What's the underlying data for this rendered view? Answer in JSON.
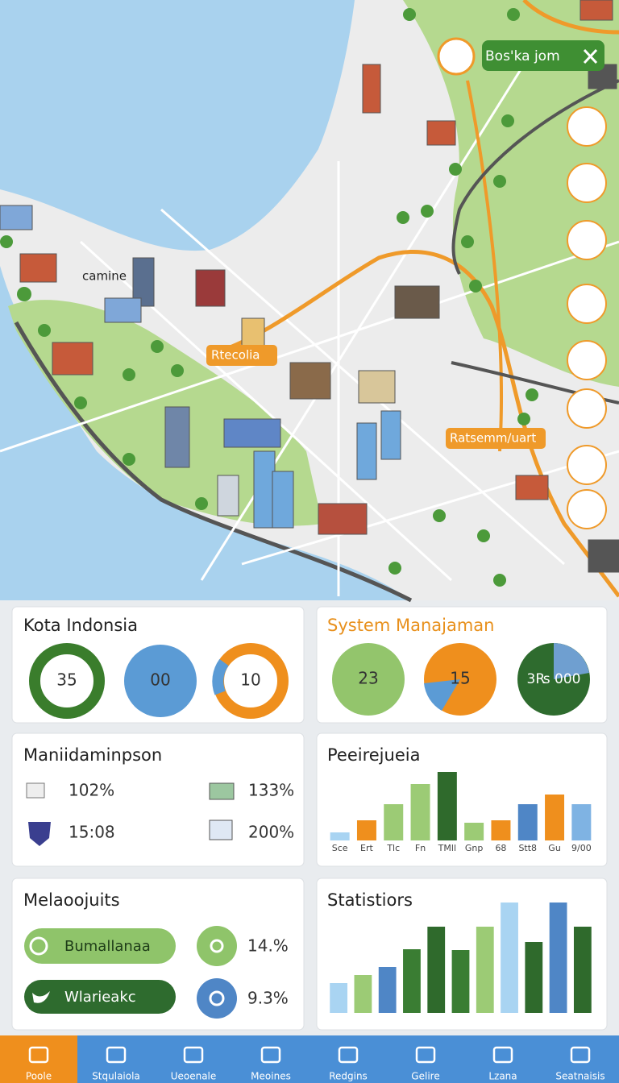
{
  "map": {
    "popup": "Bos'ka jom",
    "labels": [
      "camine",
      "Rtecolia",
      "Ratsemm/uart"
    ]
  },
  "cards": [
    {
      "title": "Kota Indonsia",
      "values": [
        "35",
        "00",
        "10"
      ]
    },
    {
      "title": "System Manajaman",
      "values": [
        "23",
        "15",
        "3₨ 000"
      ]
    },
    {
      "title": "Maniidaminpson",
      "items": [
        "102%",
        "133%",
        "15:08",
        "200%"
      ]
    },
    {
      "title": "Peeirejueia",
      "chart": {
        "type": "bar",
        "categories": [
          "Sce",
          "Ert",
          "Tlc",
          "Fn",
          "TMll",
          "Gnp",
          "68",
          "Stt8",
          "Gu",
          "9/00"
        ],
        "values": [
          10,
          25,
          45,
          70,
          85,
          22,
          25,
          45,
          57,
          45
        ],
        "colors": [
          "#a9d4f2",
          "#ef8f1d",
          "#9ccb75",
          "#9ccb75",
          "#2f6a2c",
          "#9ccb75",
          "#ef8f1d",
          "#4f86c6",
          "#ef8f1d",
          "#7fb3e3"
        ]
      }
    },
    {
      "title": "Melaoojuits",
      "buttons": [
        "Bumallanaa",
        "Wlarieakc"
      ],
      "stats": [
        "14.%",
        "9.3%"
      ]
    },
    {
      "title": "Statistiors",
      "chart": {
        "type": "bar",
        "values": [
          37,
          47,
          57,
          79,
          107,
          78,
          107,
          137,
          88,
          137,
          107
        ],
        "colors": [
          "#a9d4f2",
          "#9ccb75",
          "#4f86c6",
          "#3a7d33",
          "#2f6a2c",
          "#3a7d33",
          "#9ccb75",
          "#a9d4f2",
          "#2f6a2c",
          "#4f86c6",
          "#2f6a2c"
        ]
      }
    }
  ],
  "nav": {
    "items": [
      "Poole",
      "Stqulaiola",
      "Ueoenale",
      "Meoines",
      "Redgins",
      "Gelire",
      "Lzana",
      "Seatnaisis"
    ],
    "active": 0
  }
}
